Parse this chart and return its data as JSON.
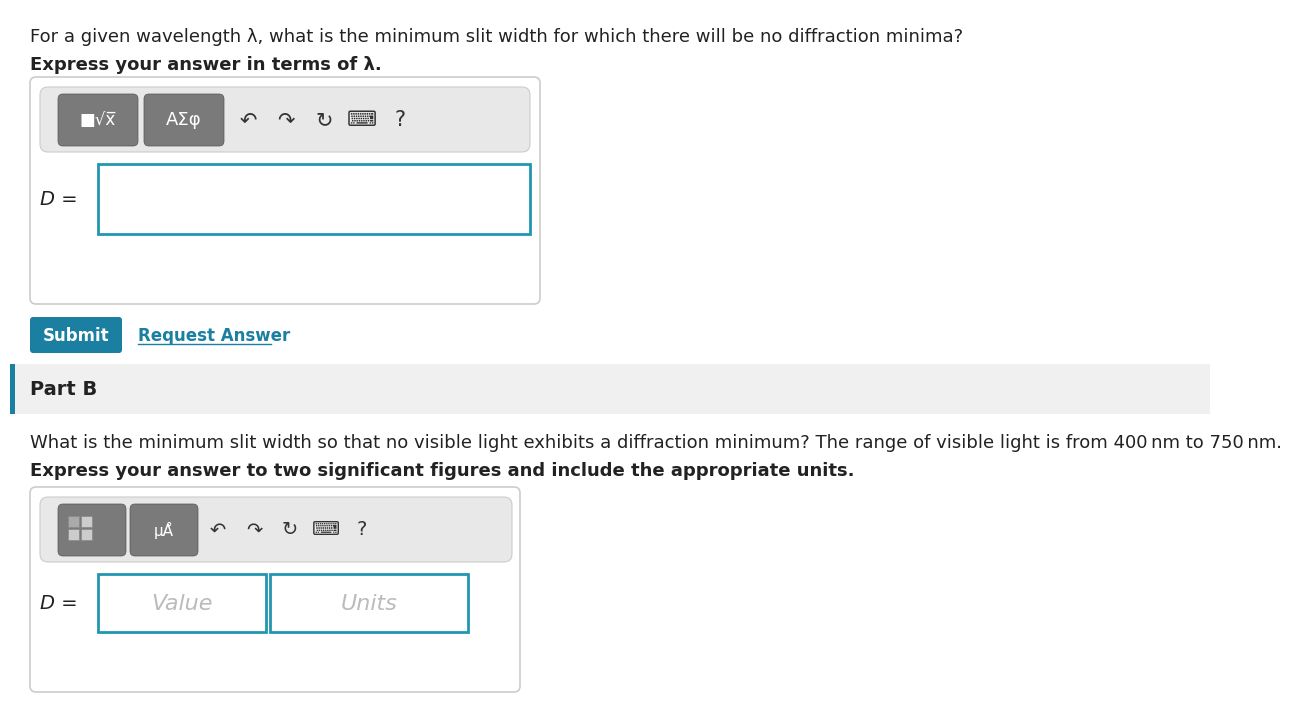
{
  "bg_color": "#ffffff",
  "title_text": "For a given wavelength λ, what is the minimum slit width for which there will be no diffraction minima?",
  "bold_text_a": "Express your answer in terms of λ.",
  "bold_text_b": "Express your answer to two significant figures and include the appropriate units.",
  "part_b_label": "Part B",
  "part_b_question": "What is the minimum slit width so that no visible light exhibits a diffraction minimum? The range of visible light is from 400 nm to 750 nm.",
  "d_eq": "D =",
  "submit_text": "Submit",
  "request_text": "Request Answer",
  "value_text": "Value",
  "units_text": "Units",
  "submit_bg": "#1a7fa0",
  "submit_text_color": "#ffffff",
  "request_color": "#1a7fa0",
  "box_border_color": "#cccccc",
  "input_border_color": "#2196b0",
  "toolbar_bg": "#e8e8e8",
  "toolbar_border": "#cccccc",
  "btn_bg": "#7a7a7a",
  "btn_border": "#555555",
  "icon_color": "#333333",
  "part_b_section_bg": "#f0f0f0",
  "part_b_bar_color": "#1a7fa0",
  "text_color": "#222222"
}
